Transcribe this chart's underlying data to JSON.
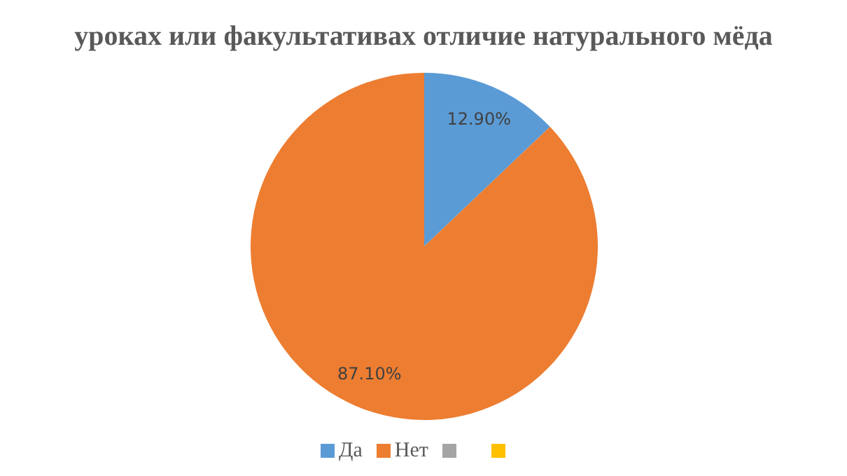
{
  "chart_data": {
    "type": "pie",
    "title": "уроках или факультативах отличие натурального мёда",
    "categories": [
      "Да",
      "Нет",
      null,
      null
    ],
    "values": [
      12.9,
      87.1,
      0,
      0
    ],
    "colors": [
      "#5b9bd5",
      "#ed7d31",
      "#a5a5a5",
      "#ffc000"
    ],
    "value_labels": [
      "12.90%",
      "87.10%",
      null,
      null
    ],
    "legend": "bottom"
  }
}
